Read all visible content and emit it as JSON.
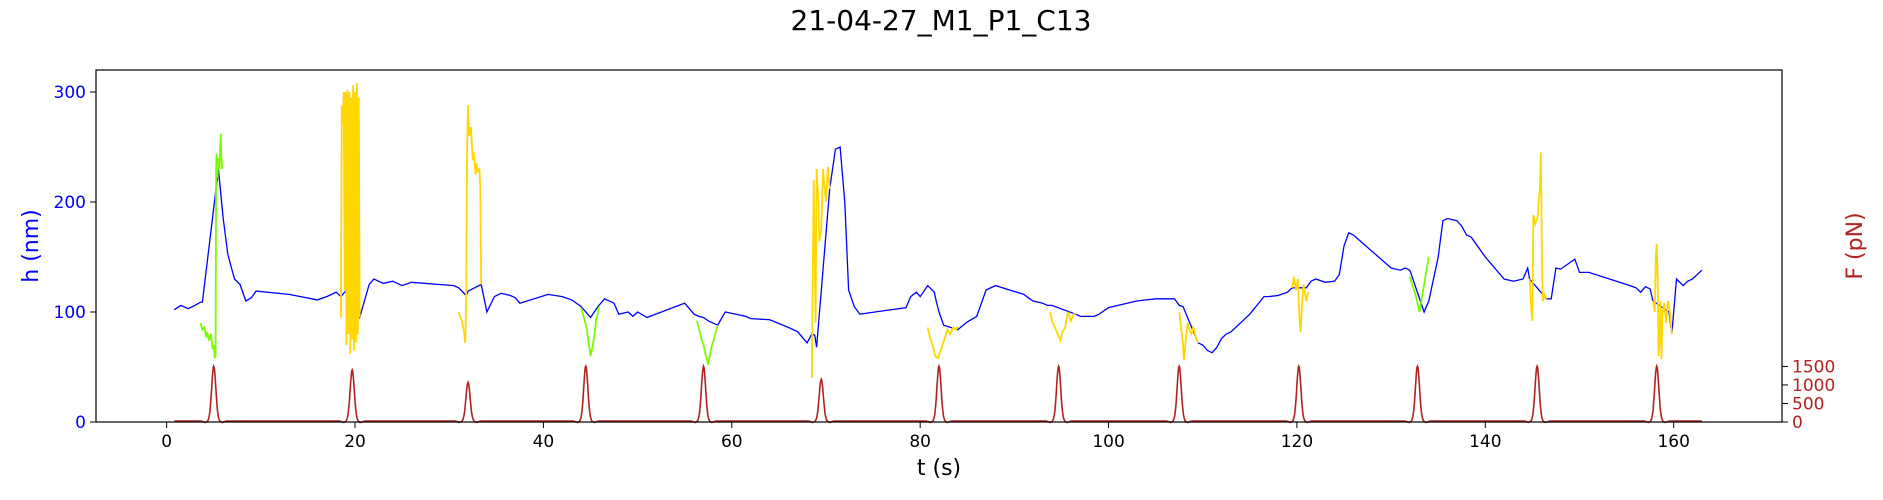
{
  "chart_data": {
    "type": "line",
    "title": "21-04-27_M1_P1_C13",
    "xlabel": "t (s)",
    "ylabel": "h (nm)",
    "ylabel_right": "F (pN)",
    "xlim": [
      -7.5,
      171.5
    ],
    "ylim": [
      0,
      320
    ],
    "ylim_right": [
      0,
      9500
    ],
    "x_ticks": [
      0,
      20,
      40,
      60,
      80,
      100,
      120,
      140,
      160
    ],
    "y_ticks": [
      0,
      100,
      200,
      300
    ],
    "y_ticks_right": [
      0,
      500,
      1000,
      1500
    ],
    "colors": {
      "height": "#0000ff",
      "green": "#7cfc00",
      "yellow": "#ffd700",
      "force": "#b22222",
      "left_axis": "#0000ff",
      "right_axis": "#b22222"
    },
    "height_series": [
      [
        0.8,
        102
      ],
      [
        1.5,
        106
      ],
      [
        2.3,
        103
      ],
      [
        3.0,
        106
      ],
      [
        3.6,
        109
      ],
      [
        3.8,
        109
      ],
      [
        5.5,
        230
      ],
      [
        6.0,
        185
      ],
      [
        6.5,
        152
      ],
      [
        7.2,
        130
      ],
      [
        7.8,
        125
      ],
      [
        8.4,
        110
      ],
      [
        9.0,
        113
      ],
      [
        9.5,
        119
      ],
      [
        13,
        116
      ],
      [
        16,
        111
      ],
      [
        17,
        114
      ],
      [
        18,
        118
      ],
      [
        18.5,
        114
      ],
      [
        19,
        119
      ],
      [
        20.5,
        95
      ],
      [
        21,
        110
      ],
      [
        21.5,
        125
      ],
      [
        22,
        130
      ],
      [
        23,
        126
      ],
      [
        24,
        128
      ],
      [
        25,
        124
      ],
      [
        26,
        127
      ],
      [
        30.5,
        124
      ],
      [
        31,
        122
      ],
      [
        31.8,
        115
      ],
      [
        32,
        119
      ],
      [
        33.4,
        125
      ],
      [
        34,
        100
      ],
      [
        34.8,
        114
      ],
      [
        35.5,
        117
      ],
      [
        36.5,
        115
      ],
      [
        37,
        113
      ],
      [
        37.5,
        108
      ],
      [
        40.5,
        116
      ],
      [
        42,
        114
      ],
      [
        43,
        111
      ],
      [
        44,
        105
      ],
      [
        45,
        95
      ],
      [
        45.8,
        105
      ],
      [
        46.5,
        112
      ],
      [
        47.5,
        108
      ],
      [
        48,
        98
      ],
      [
        49,
        100
      ],
      [
        49.5,
        96
      ],
      [
        50,
        100
      ],
      [
        51,
        95
      ],
      [
        55,
        108
      ],
      [
        56,
        98
      ],
      [
        56.5,
        96
      ],
      [
        57,
        95
      ],
      [
        57.5,
        92
      ],
      [
        58.5,
        88
      ],
      [
        59.3,
        100
      ],
      [
        61.5,
        96
      ],
      [
        62,
        94
      ],
      [
        64,
        93
      ],
      [
        66,
        86
      ],
      [
        67,
        82
      ],
      [
        68,
        72
      ],
      [
        68.5,
        80
      ],
      [
        68.8,
        79
      ],
      [
        69,
        68
      ],
      [
        70.4,
        212
      ],
      [
        71,
        248
      ],
      [
        71.5,
        250
      ],
      [
        72,
        200
      ],
      [
        72.4,
        120
      ],
      [
        73,
        105
      ],
      [
        73.6,
        98
      ],
      [
        78.5,
        104
      ],
      [
        79,
        114
      ],
      [
        79.6,
        118
      ],
      [
        80,
        114
      ],
      [
        80.8,
        124
      ],
      [
        81.5,
        118
      ],
      [
        81.7,
        110
      ],
      [
        82,
        100
      ],
      [
        82.5,
        88
      ],
      [
        84,
        84
      ],
      [
        85,
        91
      ],
      [
        86,
        96
      ],
      [
        86.5,
        108
      ],
      [
        87,
        120
      ],
      [
        88,
        124
      ],
      [
        91,
        116
      ],
      [
        91.8,
        111
      ],
      [
        92,
        110
      ],
      [
        93,
        108
      ],
      [
        93.5,
        106
      ],
      [
        94,
        106
      ],
      [
        96.5,
        98
      ],
      [
        97,
        96
      ],
      [
        98.5,
        96
      ],
      [
        99,
        98
      ],
      [
        100,
        104
      ],
      [
        101,
        106
      ],
      [
        103,
        110
      ],
      [
        105,
        112
      ],
      [
        107,
        112
      ],
      [
        107.5,
        106
      ],
      [
        107.9,
        105
      ],
      [
        109.5,
        72
      ],
      [
        110,
        70
      ],
      [
        110.5,
        65
      ],
      [
        111,
        63
      ],
      [
        111.5,
        68
      ],
      [
        112,
        76
      ],
      [
        112.5,
        80
      ],
      [
        113,
        82
      ],
      [
        115,
        98
      ],
      [
        116.5,
        114
      ],
      [
        117,
        114
      ],
      [
        118,
        115
      ],
      [
        119,
        118
      ],
      [
        119.5,
        122
      ],
      [
        121,
        122
      ],
      [
        121.5,
        128
      ],
      [
        122,
        130
      ],
      [
        123,
        127
      ],
      [
        124,
        128
      ],
      [
        124.5,
        134
      ],
      [
        125,
        160
      ],
      [
        125.5,
        172
      ],
      [
        126,
        170
      ],
      [
        130,
        140
      ],
      [
        131,
        138
      ],
      [
        131.5,
        140
      ],
      [
        132,
        138
      ],
      [
        133.5,
        100
      ],
      [
        134,
        110
      ],
      [
        134.5,
        130
      ],
      [
        135,
        150
      ],
      [
        135.5,
        183
      ],
      [
        136,
        185
      ],
      [
        137,
        183
      ],
      [
        137.5,
        178
      ],
      [
        138,
        170
      ],
      [
        138.5,
        168
      ],
      [
        140,
        150
      ],
      [
        142,
        130
      ],
      [
        143,
        128
      ],
      [
        144,
        130
      ],
      [
        144.5,
        140
      ],
      [
        144.7,
        130
      ],
      [
        146.5,
        112
      ],
      [
        147,
        112
      ],
      [
        147.5,
        140
      ],
      [
        148,
        139
      ],
      [
        149,
        145
      ],
      [
        149.5,
        148
      ],
      [
        150,
        136
      ],
      [
        151,
        136
      ],
      [
        155,
        125
      ],
      [
        156,
        122
      ],
      [
        156.5,
        118
      ],
      [
        157,
        123
      ],
      [
        157.5,
        121
      ],
      [
        157.8,
        110
      ],
      [
        159.5,
        100
      ],
      [
        159.8,
        80
      ],
      [
        160.3,
        130
      ],
      [
        161,
        124
      ],
      [
        161.5,
        128
      ],
      [
        162,
        130
      ],
      [
        163,
        138
      ]
    ],
    "green_segments": [
      [
        [
          3.6,
          90
        ],
        [
          3.8,
          84
        ],
        [
          4.0,
          86
        ],
        [
          4.2,
          77
        ],
        [
          4.3,
          82
        ],
        [
          4.5,
          74
        ],
        [
          4.7,
          80
        ],
        [
          4.9,
          66
        ],
        [
          5.0,
          70
        ],
        [
          5.1,
          58
        ],
        [
          5.2,
          60
        ],
        [
          5.25,
          232
        ],
        [
          5.3,
          244
        ],
        [
          5.4,
          222
        ],
        [
          5.5,
          240
        ],
        [
          5.6,
          230
        ],
        [
          5.7,
          252
        ],
        [
          5.75,
          262
        ],
        [
          5.8,
          242
        ],
        [
          5.9,
          230
        ]
      ],
      [
        [
          44,
          104
        ],
        [
          44.2,
          98
        ],
        [
          44.4,
          92
        ],
        [
          44.6,
          85
        ],
        [
          44.8,
          72
        ],
        [
          44.9,
          66
        ],
        [
          45,
          60
        ],
        [
          45.2,
          68
        ],
        [
          45.4,
          78
        ],
        [
          45.6,
          92
        ],
        [
          45.8,
          100
        ],
        [
          45.9,
          105
        ]
      ],
      [
        [
          56.3,
          92
        ],
        [
          56.5,
          86
        ],
        [
          56.8,
          75
        ],
        [
          57,
          70
        ],
        [
          57.2,
          62
        ],
        [
          57.4,
          56
        ],
        [
          57.5,
          52
        ],
        [
          57.7,
          62
        ],
        [
          57.9,
          70
        ],
        [
          58.1,
          75
        ],
        [
          58.3,
          82
        ],
        [
          58.5,
          88
        ]
      ],
      [
        [
          132,
          132
        ],
        [
          132.2,
          126
        ],
        [
          132.5,
          118
        ],
        [
          132.8,
          108
        ],
        [
          133,
          100
        ],
        [
          133.2,
          110
        ],
        [
          133.5,
          125
        ],
        [
          133.8,
          140
        ],
        [
          134,
          150
        ]
      ]
    ],
    "yellow_segments": [
      [
        [
          18.5,
          95
        ],
        [
          18.6,
          288
        ],
        [
          18.7,
          270
        ],
        [
          18.8,
          300
        ],
        [
          18.9,
          120
        ],
        [
          19.0,
          300
        ],
        [
          19.1,
          70
        ],
        [
          19.2,
          302
        ],
        [
          19.3,
          80
        ],
        [
          19.4,
          300
        ],
        [
          19.5,
          62
        ],
        [
          19.6,
          295
        ],
        [
          19.7,
          75
        ],
        [
          19.8,
          306
        ],
        [
          19.9,
          65
        ],
        [
          20.0,
          300
        ],
        [
          20.1,
          72
        ],
        [
          20.2,
          308
        ],
        [
          20.3,
          80
        ],
        [
          20.4,
          295
        ],
        [
          20.5,
          95
        ]
      ],
      [
        [
          31.0,
          100
        ],
        [
          31.2,
          95
        ],
        [
          31.4,
          90
        ],
        [
          31.5,
          85
        ],
        [
          31.6,
          80
        ],
        [
          31.7,
          72
        ],
        [
          31.8,
          110
        ],
        [
          31.9,
          250
        ],
        [
          32.0,
          288
        ],
        [
          32.1,
          260
        ],
        [
          32.3,
          268
        ],
        [
          32.5,
          238
        ],
        [
          32.6,
          245
        ],
        [
          32.8,
          225
        ],
        [
          32.9,
          235
        ],
        [
          33.0,
          228
        ],
        [
          33.2,
          230
        ],
        [
          33.3,
          212
        ],
        [
          33.4,
          125
        ]
      ],
      [
        [
          68.5,
          40
        ],
        [
          68.7,
          220
        ],
        [
          68.9,
          90
        ],
        [
          69.0,
          230
        ],
        [
          69.2,
          200
        ],
        [
          69.3,
          164
        ],
        [
          69.5,
          175
        ],
        [
          69.7,
          230
        ],
        [
          69.8,
          218
        ],
        [
          70.0,
          200
        ],
        [
          70.2,
          232
        ],
        [
          70.4,
          212
        ]
      ],
      [
        [
          80.8,
          86
        ],
        [
          81,
          78
        ],
        [
          81.3,
          70
        ],
        [
          81.6,
          60
        ],
        [
          81.9,
          58
        ],
        [
          82.2,
          66
        ],
        [
          82.6,
          76
        ],
        [
          82.9,
          84
        ],
        [
          83.2,
          80
        ],
        [
          83.5,
          86
        ],
        [
          83.8,
          84
        ],
        [
          84.0,
          87
        ]
      ],
      [
        [
          93.8,
          100
        ],
        [
          94,
          92
        ],
        [
          94.3,
          86
        ],
        [
          94.6,
          80
        ],
        [
          94.9,
          74
        ],
        [
          95.1,
          82
        ],
        [
          95.4,
          86
        ],
        [
          95.7,
          100
        ],
        [
          96,
          92
        ],
        [
          96.3,
          98
        ],
        [
          96.5,
          98
        ]
      ],
      [
        [
          107.5,
          100
        ],
        [
          107.7,
          86
        ],
        [
          107.9,
          70
        ],
        [
          108.0,
          56
        ],
        [
          108.2,
          75
        ],
        [
          108.4,
          90
        ],
        [
          108.6,
          84
        ],
        [
          108.8,
          80
        ],
        [
          109.0,
          86
        ],
        [
          109.3,
          76
        ],
        [
          109.5,
          72
        ]
      ],
      [
        [
          119.5,
          122
        ],
        [
          119.7,
          132
        ],
        [
          119.9,
          120
        ],
        [
          120.1,
          130
        ],
        [
          120.2,
          108
        ],
        [
          120.3,
          90
        ],
        [
          120.4,
          82
        ],
        [
          120.5,
          100
        ],
        [
          120.7,
          125
        ],
        [
          120.9,
          115
        ],
        [
          121.0,
          110
        ],
        [
          121.2,
          118
        ]
      ],
      [
        [
          144.7,
          130
        ],
        [
          144.9,
          100
        ],
        [
          145.0,
          92
        ],
        [
          145.1,
          188
        ],
        [
          145.3,
          180
        ],
        [
          145.5,
          185
        ],
        [
          145.6,
          190
        ],
        [
          145.7,
          205
        ],
        [
          145.8,
          212
        ],
        [
          145.9,
          245
        ],
        [
          146.0,
          160
        ],
        [
          146.1,
          110
        ],
        [
          146.3,
          116
        ],
        [
          146.5,
          112
        ]
      ],
      [
        [
          157.8,
          110
        ],
        [
          158.0,
          100
        ],
        [
          158.1,
          150
        ],
        [
          158.2,
          162
        ],
        [
          158.3,
          130
        ],
        [
          158.4,
          60
        ],
        [
          158.5,
          75
        ],
        [
          158.6,
          110
        ],
        [
          158.7,
          57
        ],
        [
          158.8,
          98
        ],
        [
          159.0,
          108
        ],
        [
          159.2,
          90
        ],
        [
          159.4,
          110
        ],
        [
          159.6,
          100
        ],
        [
          159.8,
          80
        ]
      ]
    ],
    "force_series": {
      "baseline": 25,
      "x_start": 0.8,
      "x_end": 163,
      "peaks": [
        {
          "x": 5.0,
          "value": 1480
        },
        {
          "x": 19.7,
          "value": 1380
        },
        {
          "x": 32.0,
          "value": 1050
        },
        {
          "x": 44.5,
          "value": 1480
        },
        {
          "x": 57.0,
          "value": 1480
        },
        {
          "x": 69.5,
          "value": 1130
        },
        {
          "x": 82.0,
          "value": 1480
        },
        {
          "x": 94.7,
          "value": 1480
        },
        {
          "x": 107.5,
          "value": 1480
        },
        {
          "x": 120.2,
          "value": 1480
        },
        {
          "x": 132.8,
          "value": 1480
        },
        {
          "x": 145.5,
          "value": 1480
        },
        {
          "x": 158.2,
          "value": 1480
        }
      ]
    }
  }
}
